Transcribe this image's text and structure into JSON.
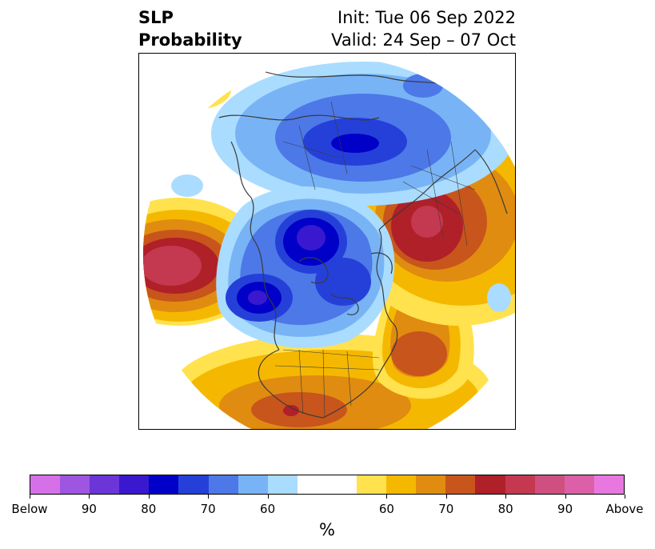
{
  "title": {
    "left_line1": "SLP",
    "left_line2": "Probability",
    "init": "Init: Tue 06 Sep 2022",
    "valid": "Valid: 24 Sep – 07 Oct"
  },
  "map": {
    "projection": "north-polar-stereographic",
    "field": "SLP probability (below / above normal)",
    "features": [
      {
        "region": "Bering Sea / Alaska",
        "category": "below",
        "level": "80"
      },
      {
        "region": "North Pacific (central)",
        "category": "below",
        "level": "80"
      },
      {
        "region": "Arctic / Greenland",
        "category": "below",
        "level": "80"
      },
      {
        "region": "Northern Siberia / Arctic Ocean",
        "category": "below",
        "level": "70"
      },
      {
        "region": "Northeast Pacific",
        "category": "above",
        "level": "85"
      },
      {
        "region": "Western Russia / Scandinavia",
        "category": "above",
        "level": "80"
      },
      {
        "region": "Central North Atlantic",
        "category": "above",
        "level": "75"
      },
      {
        "region": "Southwestern United States / Mexico",
        "category": "above",
        "level": "75"
      },
      {
        "region": "Central Asia",
        "category": "above",
        "level": "60"
      }
    ]
  },
  "colorbar": {
    "colors": [
      "#d670e8",
      "#9e55e0",
      "#6b35d8",
      "#3a18d0",
      "#0000c8",
      "#2540d8",
      "#4d78e8",
      "#78b4f5",
      "#aadcff",
      "#ffffff",
      "#ffffff",
      "#ffe24d",
      "#f5b800",
      "#e08c10",
      "#c8551c",
      "#b02028",
      "#c43850",
      "#cf5080",
      "#dc60a8",
      "#e878e0"
    ],
    "tick_labels": [
      "Below",
      "90",
      "80",
      "70",
      "60",
      "60",
      "70",
      "80",
      "90",
      "Above"
    ],
    "unit": "%"
  },
  "colors": {
    "below_strong": "#0000c8",
    "above_strong": "#b02028",
    "coastline": "#3a3a3a"
  }
}
